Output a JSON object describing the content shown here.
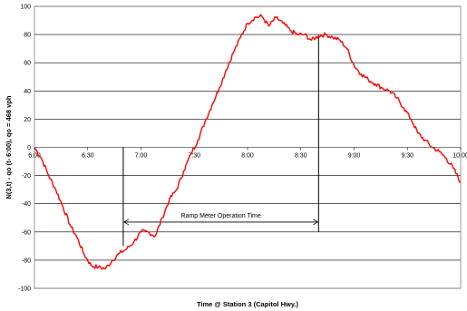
{
  "chart_data": {
    "type": "line",
    "xlabel": "Time @ Station 3 (Capitol Hwy.)",
    "ylabel": "N(3,t) - qo (t- 6:00), qo = 468 vph",
    "x_ticks": [
      "6:00",
      "6:30",
      "7:00",
      "7:30",
      "8:00",
      "8:30",
      "9:00",
      "9:30",
      "10:00"
    ],
    "xlim": [
      "6:00",
      "10:00"
    ],
    "ylim": [
      -100,
      100
    ],
    "y_ticks": [
      -100,
      -80,
      -60,
      -40,
      -20,
      0,
      20,
      40,
      60,
      80,
      100
    ],
    "grid": true,
    "annotation": {
      "text": "Ramp Meter Operation Time",
      "start": "6:50",
      "end": "8:40",
      "y": -53,
      "markers": [
        "6:50",
        "8:40"
      ]
    },
    "series": [
      {
        "color": "#ff0000",
        "x": [
          "6:00",
          "6:04",
          "6:08",
          "6:12",
          "6:16",
          "6:20",
          "6:24",
          "6:28",
          "6:32",
          "6:36",
          "6:40",
          "6:44",
          "6:48",
          "6:52",
          "6:56",
          "7:00",
          "7:04",
          "7:08",
          "7:12",
          "7:16",
          "7:20",
          "7:24",
          "7:28",
          "7:32",
          "7:36",
          "7:40",
          "7:44",
          "7:48",
          "7:52",
          "7:56",
          "8:00",
          "8:04",
          "8:08",
          "8:12",
          "8:16",
          "8:20",
          "8:24",
          "8:28",
          "8:32",
          "8:36",
          "8:40",
          "8:44",
          "8:48",
          "8:52",
          "8:56",
          "9:00",
          "9:04",
          "9:08",
          "9:12",
          "9:16",
          "9:20",
          "9:24",
          "9:28",
          "9:32",
          "9:36",
          "9:40",
          "9:44",
          "9:48",
          "9:52",
          "9:56",
          "10:00"
        ],
        "y": [
          0,
          -8,
          -20,
          -30,
          -42,
          -55,
          -64,
          -76,
          -84,
          -85,
          -86,
          -80,
          -75,
          -72,
          -67,
          -60,
          -60,
          -63,
          -50,
          -37,
          -30,
          -17,
          -5,
          5,
          18,
          30,
          42,
          55,
          67,
          78,
          88,
          92,
          93,
          86,
          92,
          88,
          83,
          80,
          80,
          76,
          79,
          80,
          78,
          76,
          70,
          58,
          52,
          48,
          45,
          42,
          40,
          35,
          28,
          20,
          10,
          5,
          0,
          -3,
          -8,
          -15,
          -25
        ]
      }
    ]
  }
}
